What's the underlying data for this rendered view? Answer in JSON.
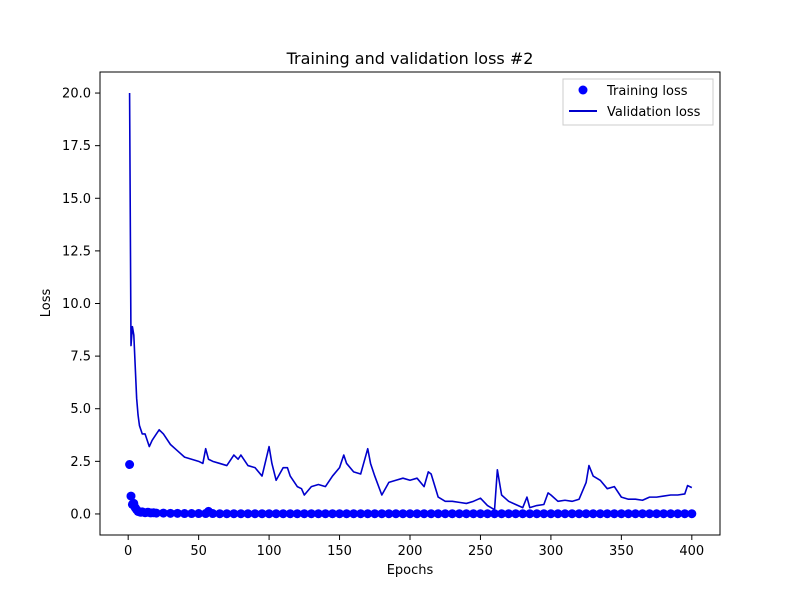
{
  "chart_data": {
    "type": "line",
    "title": "Training and validation loss #2",
    "xlabel": "Epochs",
    "ylabel": "Loss",
    "xlim": [
      -20,
      420
    ],
    "ylim": [
      -1.0,
      21.0
    ],
    "x_ticks": [
      0,
      50,
      100,
      150,
      200,
      250,
      300,
      350,
      400
    ],
    "x_tick_labels": [
      "0",
      "50",
      "100",
      "150",
      "200",
      "250",
      "300",
      "350",
      "400"
    ],
    "y_ticks": [
      0.0,
      2.5,
      5.0,
      7.5,
      10.0,
      12.5,
      15.0,
      17.5,
      20.0
    ],
    "y_tick_labels": [
      "0.0",
      "2.5",
      "5.0",
      "7.5",
      "10.0",
      "12.5",
      "15.0",
      "17.5",
      "20.0"
    ],
    "grid": false,
    "legend_position": "top-right",
    "series": [
      {
        "name": "Training loss",
        "style": "scatter",
        "color": "#0000ff",
        "x": [
          1,
          2,
          3,
          4,
          5,
          6,
          7,
          8,
          9,
          10,
          12,
          14,
          16,
          18,
          20,
          25,
          30,
          35,
          40,
          45,
          50,
          55,
          57,
          60,
          65,
          70,
          75,
          80,
          85,
          90,
          95,
          100,
          105,
          110,
          115,
          120,
          125,
          130,
          135,
          140,
          145,
          150,
          155,
          160,
          165,
          170,
          175,
          180,
          185,
          190,
          195,
          200,
          205,
          210,
          215,
          220,
          225,
          230,
          235,
          240,
          245,
          250,
          255,
          260,
          265,
          270,
          275,
          280,
          285,
          290,
          295,
          300,
          305,
          310,
          315,
          320,
          325,
          330,
          335,
          340,
          345,
          350,
          355,
          360,
          365,
          370,
          375,
          380,
          385,
          390,
          395,
          400
        ],
        "y": [
          2.35,
          0.85,
          0.45,
          0.5,
          0.3,
          0.2,
          0.12,
          0.1,
          0.08,
          0.1,
          0.06,
          0.08,
          0.05,
          0.06,
          0.04,
          0.04,
          0.03,
          0.03,
          0.02,
          0.02,
          0.02,
          0.02,
          0.12,
          0.02,
          0.01,
          0.01,
          0.01,
          0.01,
          0.01,
          0.01,
          0.01,
          0.01,
          0.01,
          0.01,
          0.01,
          0.01,
          0.01,
          0.01,
          0.01,
          0.01,
          0.01,
          0.01,
          0.01,
          0.01,
          0.01,
          0.01,
          0.01,
          0.01,
          0.01,
          0.01,
          0.01,
          0.01,
          0.01,
          0.01,
          0.01,
          0.01,
          0.01,
          0.01,
          0.01,
          0.01,
          0.01,
          0.01,
          0.01,
          0.01,
          0.01,
          0.01,
          0.01,
          0.01,
          0.01,
          0.01,
          0.01,
          0.01,
          0.01,
          0.01,
          0.01,
          0.01,
          0.01,
          0.01,
          0.01,
          0.01,
          0.01,
          0.01,
          0.01,
          0.01,
          0.01,
          0.01,
          0.01,
          0.01,
          0.01,
          0.01,
          0.01,
          0.01
        ]
      },
      {
        "name": "Validation loss",
        "style": "line",
        "color": "#0000cc",
        "x": [
          1,
          2,
          3,
          4,
          5,
          6,
          7,
          8,
          10,
          12,
          15,
          17,
          20,
          22,
          25,
          30,
          35,
          40,
          45,
          50,
          53,
          55,
          57,
          60,
          65,
          70,
          75,
          78,
          80,
          85,
          90,
          95,
          100,
          102,
          105,
          110,
          113,
          115,
          120,
          123,
          125,
          130,
          135,
          140,
          145,
          150,
          153,
          155,
          160,
          165,
          170,
          172,
          175,
          180,
          185,
          190,
          195,
          200,
          205,
          210,
          213,
          215,
          220,
          225,
          230,
          235,
          240,
          245,
          250,
          255,
          260,
          262,
          265,
          270,
          275,
          280,
          283,
          285,
          290,
          295,
          298,
          300,
          305,
          310,
          315,
          320,
          325,
          327,
          330,
          335,
          340,
          345,
          350,
          355,
          360,
          365,
          370,
          375,
          380,
          385,
          390,
          395,
          397,
          400
        ],
        "y": [
          20.0,
          8.0,
          8.9,
          8.5,
          7.0,
          5.5,
          4.7,
          4.2,
          3.8,
          3.8,
          3.2,
          3.5,
          3.8,
          4.0,
          3.8,
          3.3,
          3.0,
          2.7,
          2.6,
          2.5,
          2.4,
          3.1,
          2.6,
          2.5,
          2.4,
          2.3,
          2.8,
          2.6,
          2.8,
          2.3,
          2.2,
          1.8,
          3.2,
          2.4,
          1.6,
          2.2,
          2.2,
          1.8,
          1.3,
          1.2,
          0.9,
          1.3,
          1.4,
          1.3,
          1.8,
          2.2,
          2.8,
          2.4,
          2.0,
          1.9,
          3.1,
          2.4,
          1.8,
          0.9,
          1.5,
          1.6,
          1.7,
          1.6,
          1.7,
          1.3,
          2.0,
          1.9,
          0.8,
          0.6,
          0.6,
          0.55,
          0.5,
          0.6,
          0.75,
          0.4,
          0.2,
          2.1,
          0.9,
          0.6,
          0.45,
          0.3,
          0.8,
          0.3,
          0.4,
          0.45,
          1.0,
          0.9,
          0.6,
          0.65,
          0.6,
          0.7,
          1.5,
          2.3,
          1.8,
          1.6,
          1.2,
          1.3,
          0.8,
          0.7,
          0.7,
          0.65,
          0.8,
          0.8,
          0.85,
          0.9,
          0.9,
          0.95,
          1.35,
          1.25
        ]
      }
    ]
  }
}
